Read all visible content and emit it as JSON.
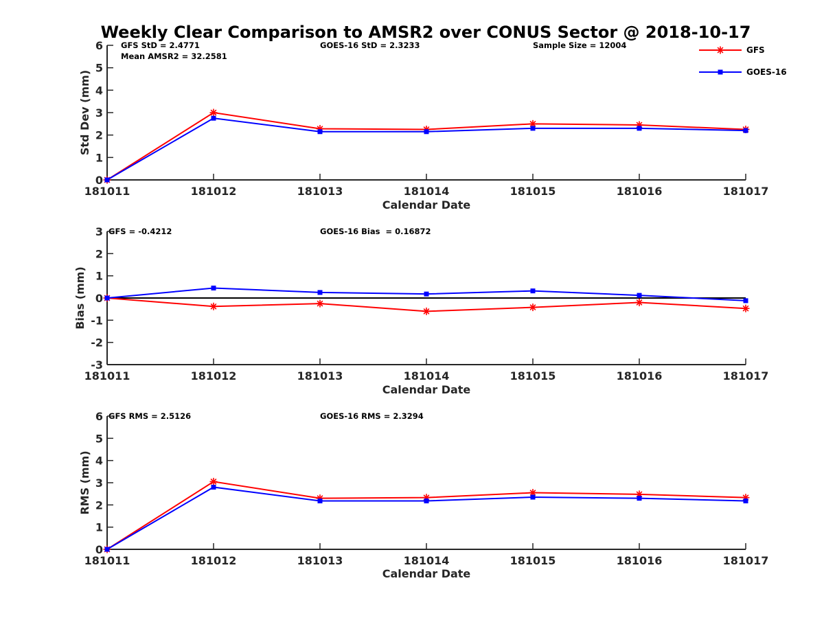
{
  "title": "Weekly Clear Comparison to AMSR2 over CONUS Sector @ 2018-10-17",
  "legend": {
    "placement": "top-right",
    "items": [
      {
        "name": "GFS",
        "color": "#ff0000",
        "marker": "asterisk"
      },
      {
        "name": "GOES-16",
        "color": "#0000ff",
        "marker": "square"
      }
    ]
  },
  "chart_data": [
    {
      "type": "line",
      "id": "stddev",
      "title": "Weekly Clear Comparison to AMSR2 over CONUS Sector @ 2018-10-17",
      "xlabel": "Calendar Date",
      "ylabel": "Std Dev (mm)",
      "categories": [
        "181011",
        "181012",
        "181013",
        "181014",
        "181015",
        "181016",
        "181017"
      ],
      "ylim": [
        0,
        6
      ],
      "yticks": [
        "0",
        "1",
        "2",
        "3",
        "4",
        "5",
        "6"
      ],
      "ytick_values": [
        0,
        1,
        2,
        3,
        4,
        5,
        6
      ],
      "grid": false,
      "zero_line": false,
      "annotations": [
        {
          "text": "GFS StD = 2.4771",
          "position": "top-left"
        },
        {
          "text": "Mean AMSR2 = 32.2581",
          "position": "top-left-second-line"
        },
        {
          "text": "GOES-16 StD = 2.3233",
          "position": "top-center"
        },
        {
          "text": "Sample Size = 12004",
          "position": "top-right"
        }
      ],
      "series": [
        {
          "name": "GFS",
          "color": "#ff0000",
          "marker": "asterisk",
          "values": [
            0,
            3.0,
            2.28,
            2.25,
            2.5,
            2.45,
            2.25
          ]
        },
        {
          "name": "GOES-16",
          "color": "#0000ff",
          "marker": "square",
          "values": [
            0,
            2.75,
            2.15,
            2.15,
            2.3,
            2.3,
            2.2
          ]
        }
      ]
    },
    {
      "type": "line",
      "id": "bias",
      "title": "",
      "xlabel": "Calendar Date",
      "ylabel": "Bias (mm)",
      "categories": [
        "181011",
        "181012",
        "181013",
        "181014",
        "181015",
        "181016",
        "181017"
      ],
      "ylim": [
        -3,
        3
      ],
      "yticks": [
        "-3",
        "-2",
        "-1",
        "0",
        "1",
        "2",
        "3"
      ],
      "ytick_values": [
        -3,
        -2,
        -1,
        0,
        1,
        2,
        3
      ],
      "grid": false,
      "zero_line": true,
      "annotations": [
        {
          "text": "GFS = -0.4212",
          "position": "top-left"
        },
        {
          "text": "GOES-16 Bias  = 0.16872",
          "position": "top-center"
        }
      ],
      "series": [
        {
          "name": "GFS",
          "color": "#ff0000",
          "marker": "asterisk",
          "values": [
            0,
            -0.38,
            -0.25,
            -0.6,
            -0.42,
            -0.2,
            -0.47
          ]
        },
        {
          "name": "GOES-16",
          "color": "#0000ff",
          "marker": "square",
          "values": [
            0,
            0.45,
            0.25,
            0.18,
            0.32,
            0.12,
            -0.12
          ]
        }
      ]
    },
    {
      "type": "line",
      "id": "rms",
      "title": "",
      "xlabel": "Calendar Date",
      "ylabel": "RMS (mm)",
      "categories": [
        "181011",
        "181012",
        "181013",
        "181014",
        "181015",
        "181016",
        "181017"
      ],
      "ylim": [
        0,
        6
      ],
      "yticks": [
        "0",
        "1",
        "2",
        "3",
        "4",
        "5",
        "6"
      ],
      "ytick_values": [
        0,
        1,
        2,
        3,
        4,
        5,
        6
      ],
      "grid": false,
      "zero_line": false,
      "annotations": [
        {
          "text": "GFS RMS = 2.5126",
          "position": "top-left"
        },
        {
          "text": "GOES-16 RMS = 2.3294",
          "position": "top-center"
        }
      ],
      "series": [
        {
          "name": "GFS",
          "color": "#ff0000",
          "marker": "asterisk",
          "values": [
            0,
            3.05,
            2.3,
            2.33,
            2.55,
            2.48,
            2.33
          ]
        },
        {
          "name": "GOES-16",
          "color": "#0000ff",
          "marker": "square",
          "values": [
            0,
            2.8,
            2.18,
            2.18,
            2.35,
            2.3,
            2.18
          ]
        }
      ]
    }
  ]
}
